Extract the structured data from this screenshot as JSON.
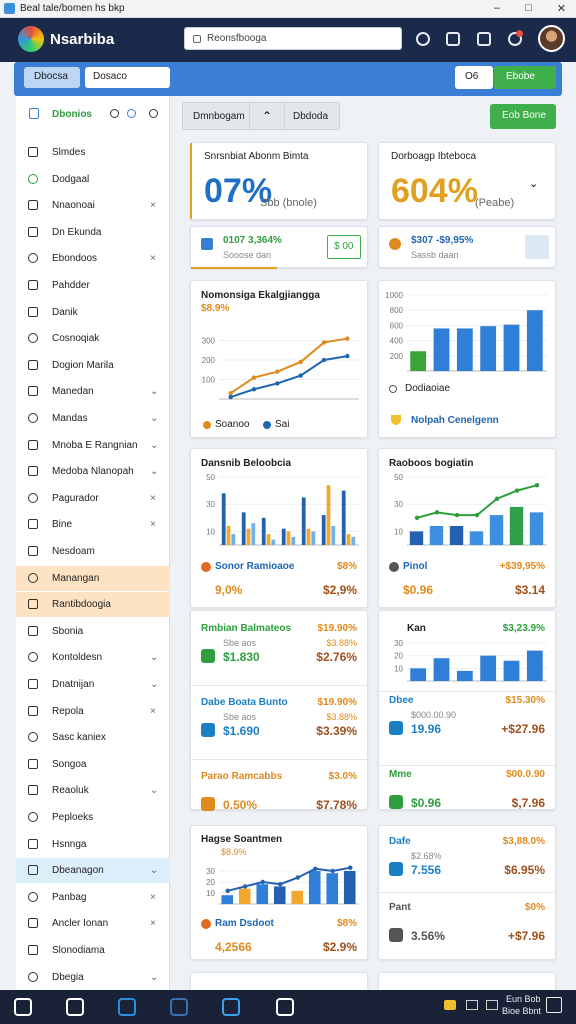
{
  "window": {
    "title": "Beal tale/bomen hs bkp"
  },
  "header": {
    "app_name": "Nsarbiba",
    "search": "Reonsfbooga"
  },
  "toolbar": {
    "left": [
      "Dbocsa",
      "Dosaco"
    ],
    "right": [
      "O6",
      "Ebobe"
    ]
  },
  "sidebar": {
    "title": "Dbonios",
    "items": [
      "Slmdes",
      "Dodgaal",
      "Nnaonoai",
      "Dn Ekunda",
      "Ebondoos",
      "Pahdder",
      "Danik",
      "Cosnoqiak",
      "Dogion Marila",
      "Manedan",
      "Mandas",
      "Mnoba E Rangnian",
      "Medoba Nlanopah",
      "Pagurador",
      "Bine",
      "Nesdoam",
      "Manangan",
      "Rantibdoogia",
      "Sbonia",
      "Kontoldesn",
      "Dnatnijan",
      "Repola",
      "Sasc kaniex",
      "Songoa",
      "Reaoluk",
      "Peploeks",
      "Hsnnga",
      "Dbeanagon",
      "Panbag",
      "Ancler Ionan",
      "Slonodiama",
      "Dbegia"
    ]
  },
  "tabs": [
    "Dmnbogam",
    "Dbdoda"
  ],
  "action": "Eob Bone",
  "kpis": [
    {
      "title": "Snrsnbiat Abonm Bimta",
      "value": "07%",
      "note": "Sbb (bnole)",
      "color": "#1f6fc5"
    },
    {
      "title": "Dorboagp Ibteboca",
      "value": "604%",
      "note": "(Peabe)",
      "color": "#e0a020"
    }
  ],
  "minis": [
    {
      "value": "0107 3,364%",
      "note": "Sooose dan",
      "button": "$ 00"
    },
    {
      "value": "$307 -$9,95%",
      "note": "Sassb daan"
    }
  ],
  "charts": [
    {
      "type": "line",
      "title": "Nomonsiga Ekalgjiangga",
      "subtitle": "$8.9%",
      "ylim": [
        0,
        400
      ],
      "yticks": [
        100,
        200,
        300
      ],
      "series": [
        {
          "name": "Soanoo",
          "color": "#e08a1e",
          "values": [
            30,
            110,
            140,
            190,
            290,
            310
          ]
        },
        {
          "name": "Sai",
          "color": "#1f66b0",
          "values": [
            10,
            50,
            80,
            120,
            200,
            220
          ]
        }
      ]
    },
    {
      "type": "bar",
      "ylim": [
        0,
        1000
      ],
      "yticks": [
        200,
        400,
        600,
        800,
        1000
      ],
      "series": [
        {
          "colors": [
            "#3aa33a",
            "#2f7fd8",
            "#2f7fd8",
            "#2f7fd8",
            "#2f7fd8",
            "#2f7fd8"
          ],
          "values": [
            260,
            560,
            560,
            590,
            610,
            800
          ]
        }
      ],
      "legend": "Dodiaoiae",
      "footer": "Nolpah Cenelgenn"
    },
    {
      "type": "bar",
      "title": "Dansnib Beloobcia",
      "ylim": [
        0,
        50
      ],
      "yticks": [
        10,
        30,
        50
      ],
      "series": [
        {
          "color": "#2461b0",
          "values": [
            38,
            24,
            20,
            12,
            35,
            22,
            40
          ]
        },
        {
          "color": "#f0a830",
          "values": [
            14,
            12,
            8,
            10,
            12,
            44,
            8
          ]
        },
        {
          "color": "#6fb3ea",
          "values": [
            8,
            16,
            4,
            6,
            10,
            14,
            6
          ]
        }
      ],
      "footer": {
        "label": "Sonor Ramioaoe",
        "change": "$8%",
        "value": "9,0%",
        "value2": "$2,9%"
      }
    },
    {
      "type": "bar",
      "title": "Raoboos bogiatin",
      "ylim": [
        0,
        50
      ],
      "yticks": [
        10,
        30,
        50
      ],
      "series": [
        {
          "colors": [
            "#2461b0",
            "#3d8fe0",
            "#2461b0",
            "#3d8fe0",
            "#3d8fe0",
            "#2fa04a",
            "#3d8fe0"
          ],
          "values": [
            10,
            14,
            14,
            10,
            22,
            28,
            24
          ]
        },
        {
          "kind": "line",
          "color": "#2f9e3a",
          "values": [
            20,
            24,
            22,
            22,
            34,
            40,
            44
          ]
        }
      ],
      "footer": {
        "label": "Pinol",
        "change": "+$39,95%",
        "value": "$0.96",
        "value2": "$3.14"
      }
    },
    {
      "type": "bar",
      "title": "Kan",
      "subtitle": "$3,23.9%",
      "ylim": [
        0,
        30
      ],
      "yticks": [
        10,
        20,
        30
      ],
      "series": [
        {
          "color": "#2f7fd8",
          "values": [
            10,
            18,
            8,
            20,
            16,
            24
          ]
        }
      ],
      "rows": [
        {
          "title": "Dbee",
          "change": "$15.30%",
          "sub": "$000.00.90",
          "value": "19.96",
          "value2": "+$27.96",
          "color": "#1a7fc7"
        },
        {
          "title": "Mme",
          "change": "$00.0.90",
          "value": "$0.96",
          "value2": "$,7.96",
          "color": "#2e9e3e"
        }
      ]
    },
    {
      "type": "bar",
      "title": "Hagse Soantmen",
      "subtitle": "$8.9%",
      "ylim": [
        0,
        40
      ],
      "yticks": [
        10,
        20,
        30
      ],
      "series": [
        {
          "colors": [
            "#2f7fd8",
            "#f0a830",
            "#2f7fd8",
            "#2461b0",
            "#f0a830",
            "#2f7fd8",
            "#2f7fd8",
            "#2461b0"
          ],
          "values": [
            8,
            14,
            18,
            16,
            12,
            30,
            28,
            30
          ]
        },
        {
          "kind": "line",
          "color": "#2461b0",
          "values": [
            12,
            16,
            20,
            18,
            24,
            32,
            30,
            33
          ]
        }
      ],
      "footer": {
        "label": "Ram Dsdoot",
        "change": "$8%",
        "value": "4,2566",
        "value2": "$2.9%"
      }
    }
  ],
  "list_left": [
    {
      "title": "Rmbian Balmateos",
      "change": "$19.90%",
      "sub": "Sbe aos",
      "sub_value": "$3.88%",
      "value": "$1.830",
      "value2": "$2.76%",
      "color": "#2e9e3e"
    },
    {
      "title": "Dabe Boata Bunto",
      "change": "$19.90%",
      "sub": "Sbe aos",
      "sub_value": "$3.88%",
      "value": "$1.690",
      "value2": "$3.39%",
      "color": "#1a7fc7"
    },
    {
      "title": "Parao Ramcabbs",
      "change": "$3.0%",
      "value": "0.50%",
      "value2": "$7.78%",
      "color": "#e08a1e"
    }
  ],
  "list_right": [
    {
      "title": "Dafe",
      "change": "$3,88.0%",
      "sub": "$2.68%",
      "value": "7.556",
      "value2": "$6.95%",
      "color": "#1a7fc7"
    },
    {
      "title": "Pant",
      "change": "$0%",
      "value": "3.56%",
      "value2": "+$7.96",
      "color": "#555555"
    }
  ],
  "taskbar": {
    "clock": [
      "Eun Bob",
      "Bioe Bbnt"
    ]
  }
}
